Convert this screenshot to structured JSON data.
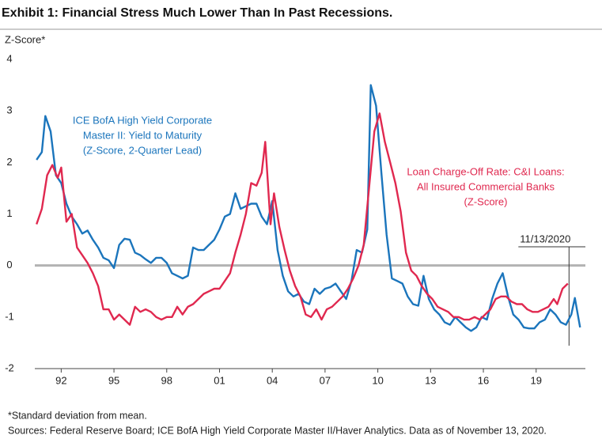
{
  "chart_data": {
    "type": "line",
    "title": "Exhibit 1: Financial Stress Much Lower Than In Past Recessions.",
    "ylabel": "Z-Score*",
    "xlim": [
      1990.5,
      2021.8
    ],
    "ylim": [
      -2,
      4
    ],
    "yticks": [
      -2,
      -1,
      0,
      1,
      2,
      3,
      4
    ],
    "xticks": [
      {
        "value": 1992,
        "label": "92"
      },
      {
        "value": 1995,
        "label": "95"
      },
      {
        "value": 1998,
        "label": "98"
      },
      {
        "value": 2001,
        "label": "01"
      },
      {
        "value": 2004,
        "label": "04"
      },
      {
        "value": 2007,
        "label": "07"
      },
      {
        "value": 2010,
        "label": "10"
      },
      {
        "value": 2013,
        "label": "13"
      },
      {
        "value": 2016,
        "label": "16"
      },
      {
        "value": 2019,
        "label": "19"
      }
    ],
    "series": [
      {
        "name": [
          "ICE BofA High Yield Corporate",
          "Master II: Yield to Maturity",
          "(Z-Score, 2-Quarter Lead)"
        ],
        "color": "#1b75bc",
        "x": [
          1990.6,
          1990.9,
          1991.1,
          1991.4,
          1991.7,
          1992.0,
          1992.3,
          1992.6,
          1992.9,
          1993.2,
          1993.5,
          1993.8,
          1994.1,
          1994.4,
          1994.7,
          1995.0,
          1995.3,
          1995.6,
          1995.9,
          1996.2,
          1996.5,
          1996.8,
          1997.1,
          1997.4,
          1997.7,
          1998.0,
          1998.3,
          1998.6,
          1998.9,
          1999.2,
          1999.5,
          1999.8,
          2000.1,
          2000.4,
          2000.7,
          2001.0,
          2001.3,
          2001.6,
          2001.9,
          2002.2,
          2002.5,
          2002.8,
          2003.1,
          2003.4,
          2003.7,
          2004.0,
          2004.3,
          2004.6,
          2004.9,
          2005.2,
          2005.5,
          2005.8,
          2006.1,
          2006.4,
          2006.7,
          2007.0,
          2007.3,
          2007.6,
          2007.9,
          2008.2,
          2008.5,
          2008.8,
          2009.1,
          2009.4,
          2009.6,
          2009.9,
          2010.2,
          2010.5,
          2010.8,
          2011.1,
          2011.4,
          2011.7,
          2012.0,
          2012.3,
          2012.6,
          2012.9,
          2013.2,
          2013.5,
          2013.8,
          2014.1,
          2014.4,
          2014.7,
          2015.0,
          2015.3,
          2015.6,
          2015.9,
          2016.2,
          2016.5,
          2016.8,
          2017.1,
          2017.4,
          2017.7,
          2018.0,
          2018.3,
          2018.6,
          2018.9,
          2019.2,
          2019.5,
          2019.8,
          2020.1,
          2020.4,
          2020.7,
          2021.0,
          2021.2,
          2021.5
        ],
        "values": [
          2.05,
          2.2,
          2.9,
          2.6,
          1.75,
          1.6,
          1.2,
          0.95,
          0.8,
          0.62,
          0.68,
          0.5,
          0.35,
          0.15,
          0.1,
          -0.05,
          0.4,
          0.52,
          0.5,
          0.25,
          0.2,
          0.12,
          0.05,
          0.15,
          0.15,
          0.05,
          -0.15,
          -0.2,
          -0.25,
          -0.2,
          0.35,
          0.3,
          0.3,
          0.4,
          0.5,
          0.7,
          0.95,
          1.0,
          1.4,
          1.1,
          1.15,
          1.2,
          1.2,
          0.95,
          0.8,
          1.25,
          0.3,
          -0.2,
          -0.5,
          -0.6,
          -0.55,
          -0.7,
          -0.75,
          -0.45,
          -0.55,
          -0.45,
          -0.42,
          -0.35,
          -0.5,
          -0.65,
          -0.3,
          0.3,
          0.25,
          0.7,
          3.5,
          3.1,
          1.8,
          0.6,
          -0.25,
          -0.3,
          -0.35,
          -0.6,
          -0.75,
          -0.78,
          -0.2,
          -0.65,
          -0.85,
          -0.95,
          -1.1,
          -1.15,
          -1.0,
          -1.1,
          -1.2,
          -1.27,
          -1.2,
          -1.0,
          -1.05,
          -0.65,
          -0.35,
          -0.15,
          -0.6,
          -0.95,
          -1.05,
          -1.2,
          -1.22,
          -1.22,
          -1.1,
          -1.05,
          -0.85,
          -0.95,
          -1.1,
          -1.15,
          -0.95,
          -0.63,
          -1.2
        ]
      },
      {
        "name": [
          "Loan Charge-Off Rate: C&I Loans:",
          "All Insured Commercial Banks",
          "(Z-Score)"
        ],
        "color": "#e0284f",
        "x": [
          1990.6,
          1990.9,
          1991.2,
          1991.5,
          1991.8,
          1992.0,
          1992.3,
          1992.6,
          1992.9,
          1993.2,
          1993.5,
          1993.8,
          1994.1,
          1994.4,
          1994.7,
          1995.0,
          1995.3,
          1995.6,
          1995.9,
          1996.2,
          1996.5,
          1996.8,
          1997.1,
          1997.4,
          1997.7,
          1998.0,
          1998.3,
          1998.6,
          1998.9,
          1999.2,
          1999.5,
          1999.8,
          2000.1,
          2000.4,
          2000.7,
          2001.0,
          2001.3,
          2001.6,
          2001.9,
          2002.2,
          2002.5,
          2002.8,
          2003.1,
          2003.4,
          2003.6,
          2003.9,
          2004.1,
          2004.4,
          2004.7,
          2005.0,
          2005.3,
          2005.6,
          2005.9,
          2006.2,
          2006.5,
          2006.8,
          2007.1,
          2007.4,
          2007.7,
          2008.0,
          2008.3,
          2008.6,
          2008.9,
          2009.2,
          2009.5,
          2009.8,
          2010.1,
          2010.4,
          2010.7,
          2011.0,
          2011.3,
          2011.6,
          2011.9,
          2012.2,
          2012.5,
          2012.8,
          2013.1,
          2013.4,
          2013.7,
          2014.0,
          2014.3,
          2014.6,
          2014.9,
          2015.2,
          2015.5,
          2015.8,
          2016.1,
          2016.4,
          2016.7,
          2017.0,
          2017.3,
          2017.6,
          2017.9,
          2018.2,
          2018.5,
          2018.8,
          2019.1,
          2019.4,
          2019.7,
          2020.0,
          2020.2,
          2020.5,
          2020.8
        ],
        "values": [
          0.8,
          1.1,
          1.75,
          1.95,
          1.7,
          1.9,
          0.85,
          1.0,
          0.35,
          0.2,
          0.05,
          -0.15,
          -0.4,
          -0.85,
          -0.85,
          -1.05,
          -0.95,
          -1.05,
          -1.15,
          -0.8,
          -0.9,
          -0.85,
          -0.9,
          -1.0,
          -1.05,
          -1.0,
          -1.0,
          -0.8,
          -0.95,
          -0.8,
          -0.75,
          -0.65,
          -0.55,
          -0.5,
          -0.45,
          -0.45,
          -0.3,
          -0.15,
          0.25,
          0.6,
          1.0,
          1.6,
          1.55,
          1.8,
          2.4,
          0.8,
          1.4,
          0.75,
          0.3,
          -0.1,
          -0.4,
          -0.6,
          -0.95,
          -1.0,
          -0.85,
          -1.05,
          -0.85,
          -0.8,
          -0.7,
          -0.6,
          -0.45,
          -0.25,
          0.0,
          0.4,
          1.5,
          2.6,
          2.95,
          2.4,
          2.0,
          1.6,
          1.05,
          0.25,
          -0.1,
          -0.2,
          -0.4,
          -0.55,
          -0.65,
          -0.8,
          -0.85,
          -0.9,
          -1.0,
          -1.0,
          -1.05,
          -1.05,
          -1.0,
          -1.05,
          -0.95,
          -0.85,
          -0.65,
          -0.6,
          -0.6,
          -0.7,
          -0.75,
          -0.75,
          -0.85,
          -0.9,
          -0.9,
          -0.85,
          -0.8,
          -0.65,
          -0.75,
          -0.45,
          -0.35
        ]
      }
    ],
    "annotation": {
      "text": "11/13/2020",
      "x": 2020.87
    },
    "footnotes": [
      "*Standard deviation from mean.",
      "Sources: Federal Reserve Board; ICE BofA High Yield Corporate Master II/Haver Analytics. Data as of November 13, 2020."
    ]
  }
}
